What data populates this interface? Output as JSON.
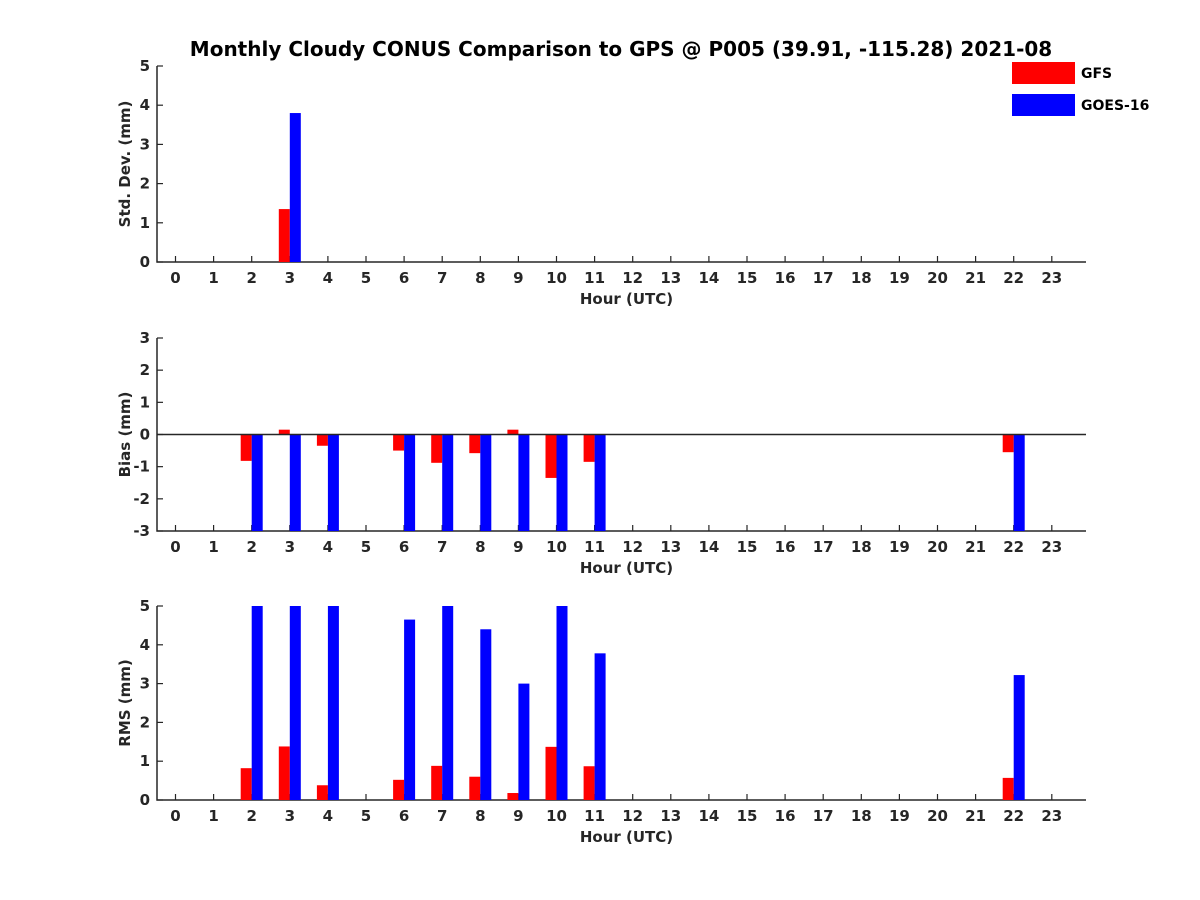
{
  "title": "Monthly Cloudy CONUS Comparison to GPS @ P005 (39.91, -115.28) 2021-08",
  "legend": {
    "placement": "top-right",
    "entries": [
      {
        "name": "GFS",
        "color": "#ff0000"
      },
      {
        "name": "GOES-16",
        "color": "#0000ff"
      }
    ]
  },
  "chart_data": [
    {
      "type": "bar",
      "categories": [
        "0",
        "1",
        "2",
        "3",
        "4",
        "5",
        "6",
        "7",
        "8",
        "9",
        "10",
        "11",
        "12",
        "13",
        "14",
        "15",
        "16",
        "17",
        "18",
        "19",
        "20",
        "21",
        "22",
        "23"
      ],
      "ylabel": "Std. Dev. (mm)",
      "xlabel": "Hour (UTC)",
      "ylim": [
        0,
        5
      ],
      "yticks": [
        "0",
        "1",
        "2",
        "3",
        "4",
        "5"
      ],
      "series": [
        {
          "name": "GFS",
          "color": "#ff0000",
          "values": [
            null,
            null,
            null,
            1.35,
            null,
            null,
            null,
            null,
            null,
            null,
            null,
            null,
            null,
            null,
            null,
            null,
            null,
            null,
            null,
            null,
            null,
            null,
            null,
            null
          ]
        },
        {
          "name": "GOES-16",
          "color": "#0000ff",
          "values": [
            null,
            null,
            null,
            3.8,
            null,
            null,
            null,
            null,
            null,
            null,
            null,
            null,
            null,
            null,
            null,
            null,
            null,
            null,
            null,
            null,
            null,
            null,
            null,
            null
          ]
        }
      ]
    },
    {
      "type": "bar",
      "categories": [
        "0",
        "1",
        "2",
        "3",
        "4",
        "5",
        "6",
        "7",
        "8",
        "9",
        "10",
        "11",
        "12",
        "13",
        "14",
        "15",
        "16",
        "17",
        "18",
        "19",
        "20",
        "21",
        "22",
        "23"
      ],
      "ylabel": "Bias (mm)",
      "xlabel": "Hour (UTC)",
      "ylim": [
        -3,
        3
      ],
      "yticks": [
        "-3",
        "-2",
        "-1",
        "0",
        "1",
        "2",
        "3"
      ],
      "zero_line": true,
      "series": [
        {
          "name": "GFS",
          "color": "#ff0000",
          "values": [
            null,
            null,
            -0.82,
            0.15,
            -0.35,
            null,
            -0.5,
            -0.88,
            -0.58,
            0.15,
            -1.35,
            -0.85,
            null,
            null,
            null,
            null,
            null,
            null,
            null,
            null,
            null,
            null,
            -0.55,
            null
          ]
        },
        {
          "name": "GOES-16",
          "color": "#0000ff",
          "values": [
            null,
            null,
            -3,
            -3,
            -3,
            null,
            -3,
            -3,
            -3,
            -3,
            -3,
            -3,
            null,
            null,
            null,
            null,
            null,
            null,
            null,
            null,
            null,
            null,
            -3,
            null
          ]
        }
      ]
    },
    {
      "type": "bar",
      "categories": [
        "0",
        "1",
        "2",
        "3",
        "4",
        "5",
        "6",
        "7",
        "8",
        "9",
        "10",
        "11",
        "12",
        "13",
        "14",
        "15",
        "16",
        "17",
        "18",
        "19",
        "20",
        "21",
        "22",
        "23"
      ],
      "ylabel": "RMS (mm)",
      "xlabel": "Hour (UTC)",
      "ylim": [
        0,
        5
      ],
      "yticks": [
        "0",
        "1",
        "2",
        "3",
        "4",
        "5"
      ],
      "series": [
        {
          "name": "GFS",
          "color": "#ff0000",
          "values": [
            null,
            null,
            0.82,
            1.38,
            0.38,
            null,
            0.52,
            0.88,
            0.6,
            0.18,
            1.37,
            0.87,
            null,
            null,
            null,
            null,
            null,
            null,
            null,
            null,
            null,
            null,
            0.57,
            null
          ]
        },
        {
          "name": "GOES-16",
          "color": "#0000ff",
          "values": [
            null,
            null,
            5,
            5,
            5,
            null,
            4.65,
            5,
            4.4,
            3,
            5,
            3.78,
            null,
            null,
            null,
            null,
            null,
            null,
            null,
            null,
            null,
            null,
            3.22,
            null
          ]
        }
      ]
    }
  ]
}
